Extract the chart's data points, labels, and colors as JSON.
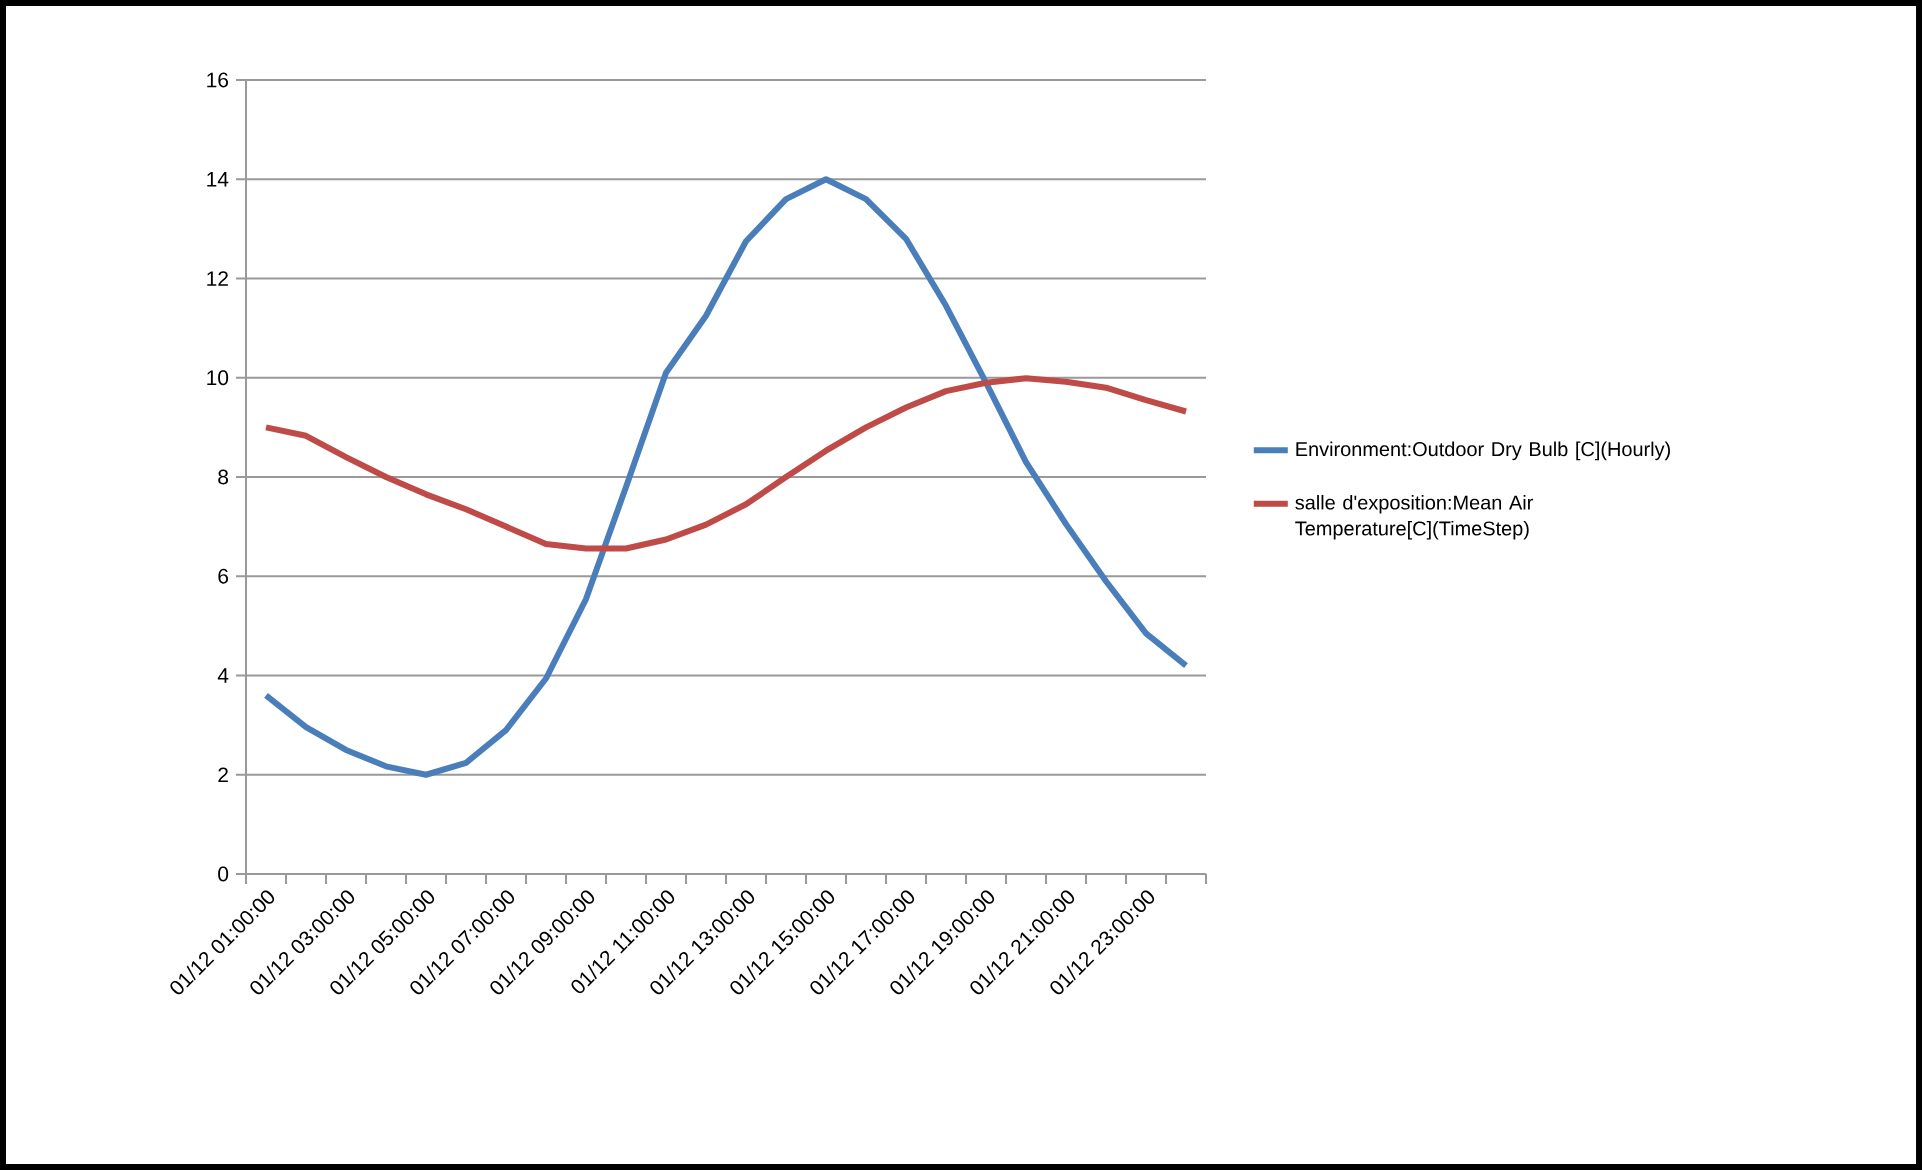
{
  "chart_data": {
    "type": "line",
    "categories": [
      "01/12  01:00:00",
      null,
      "01/12  03:00:00",
      null,
      "01/12  05:00:00",
      null,
      "01/12  07:00:00",
      null,
      "01/12  09:00:00",
      null,
      "01/12  11:00:00",
      null,
      "01/12  13:00:00",
      null,
      "01/12  15:00:00",
      null,
      "01/12  17:00:00",
      null,
      "01/12  19:00:00",
      null,
      "01/12  21:00:00",
      null,
      "01/12  23:00:00",
      null
    ],
    "series": [
      {
        "name": "Environment:Outdoor Dry Bulb [C](Hourly)",
        "color": "#4a7ebb",
        "values": [
          3.6,
          2.96,
          2.5,
          2.17,
          2.0,
          2.24,
          2.9,
          3.94,
          5.54,
          7.8,
          10.1,
          11.25,
          12.75,
          13.6,
          14.0,
          13.6,
          12.8,
          11.45,
          9.9,
          8.3,
          7.05,
          5.9,
          4.85,
          4.2
        ]
      },
      {
        "name": "salle d'exposition:Mean Air Temperature[C](TimeStep)",
        "color": "#be4b48",
        "values": [
          9.0,
          8.83,
          8.4,
          8.0,
          7.65,
          7.35,
          7.0,
          6.65,
          6.56,
          6.56,
          6.74,
          7.04,
          7.45,
          8.0,
          8.53,
          9.0,
          9.4,
          9.73,
          9.9,
          9.99,
          9.92,
          9.8,
          9.55,
          9.32
        ]
      }
    ],
    "ylim": [
      0,
      16
    ],
    "yticks": [
      0,
      2,
      4,
      6,
      8,
      10,
      12,
      14,
      16
    ],
    "grid": "y",
    "legend": "right",
    "marker": "none",
    "line_style": "solid"
  }
}
